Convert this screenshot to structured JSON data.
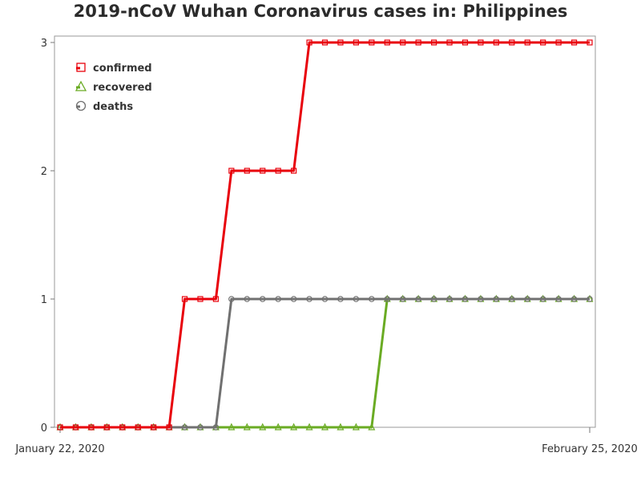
{
  "chart_data": {
    "type": "line",
    "title": "2019-nCoV Wuhan Coronavirus cases in: Philippines",
    "xlabel": "",
    "ylabel": "",
    "x_start_label": "January 22, 2020",
    "x_end_label": "February 25, 2020",
    "x": [
      "2020-01-22",
      "2020-01-23",
      "2020-01-24",
      "2020-01-25",
      "2020-01-26",
      "2020-01-27",
      "2020-01-28",
      "2020-01-29",
      "2020-01-30",
      "2020-01-31",
      "2020-02-01",
      "2020-02-02",
      "2020-02-03",
      "2020-02-04",
      "2020-02-05",
      "2020-02-06",
      "2020-02-07",
      "2020-02-08",
      "2020-02-09",
      "2020-02-10",
      "2020-02-11",
      "2020-02-12",
      "2020-02-13",
      "2020-02-14",
      "2020-02-15",
      "2020-02-16",
      "2020-02-17",
      "2020-02-18",
      "2020-02-19",
      "2020-02-20",
      "2020-02-21",
      "2020-02-22",
      "2020-02-23",
      "2020-02-24",
      "2020-02-25"
    ],
    "series": [
      {
        "name": "confirmed",
        "color": "#e8000b",
        "marker": "square",
        "values": [
          0,
          0,
          0,
          0,
          0,
          0,
          0,
          0,
          1,
          1,
          1,
          2,
          2,
          2,
          2,
          2,
          3,
          3,
          3,
          3,
          3,
          3,
          3,
          3,
          3,
          3,
          3,
          3,
          3,
          3,
          3,
          3,
          3,
          3,
          3
        ]
      },
      {
        "name": "recovered",
        "color": "#6aab23",
        "marker": "triangle",
        "values": [
          0,
          0,
          0,
          0,
          0,
          0,
          0,
          0,
          0,
          0,
          0,
          0,
          0,
          0,
          0,
          0,
          0,
          0,
          0,
          0,
          0,
          1,
          1,
          1,
          1,
          1,
          1,
          1,
          1,
          1,
          1,
          1,
          1,
          1,
          1
        ]
      },
      {
        "name": "deaths",
        "color": "#707070",
        "marker": "circle",
        "values": [
          0,
          0,
          0,
          0,
          0,
          0,
          0,
          0,
          0,
          0,
          0,
          1,
          1,
          1,
          1,
          1,
          1,
          1,
          1,
          1,
          1,
          1,
          1,
          1,
          1,
          1,
          1,
          1,
          1,
          1,
          1,
          1,
          1,
          1,
          1
        ]
      }
    ],
    "y_ticks": [
      "0",
      "1",
      "2",
      "3"
    ],
    "ylim": [
      0,
      3
    ],
    "grid": false,
    "legend_position": "top-left"
  }
}
